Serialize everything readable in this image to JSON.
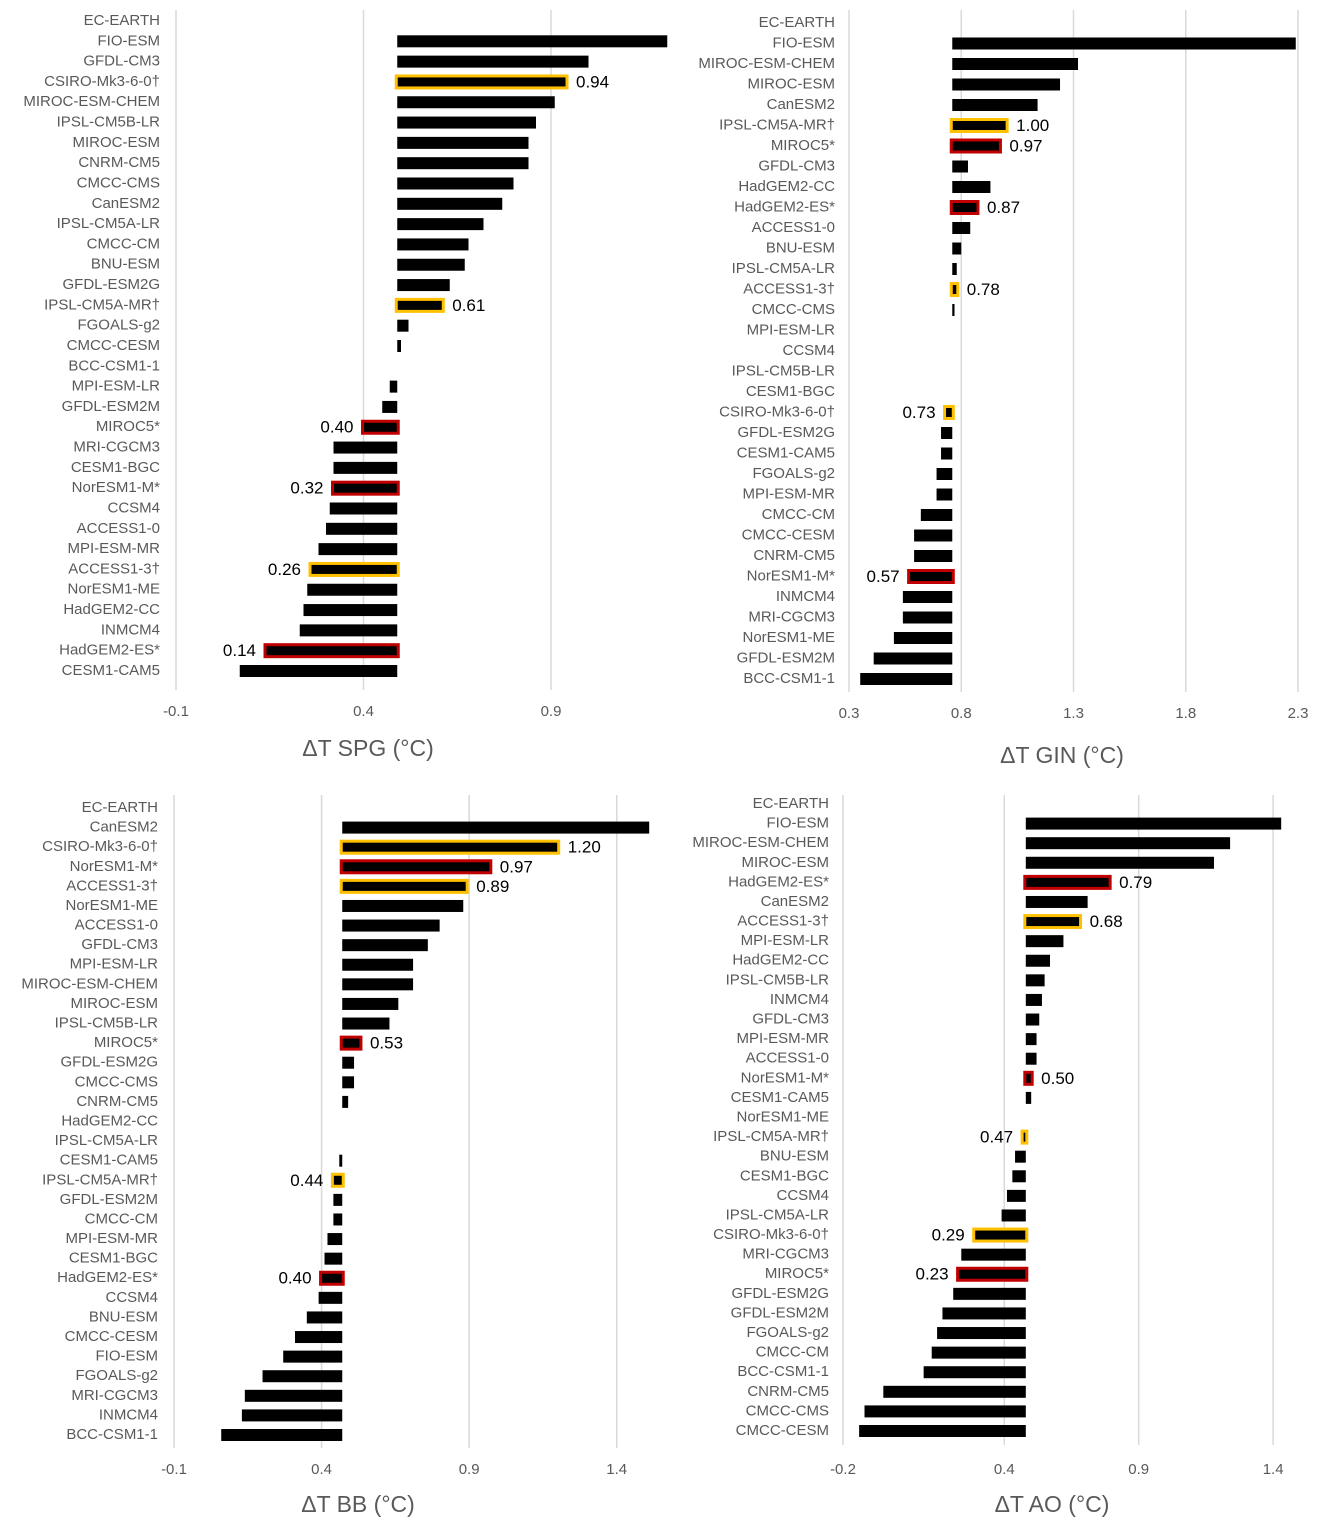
{
  "chart_data": [
    {
      "type": "bar",
      "orientation": "horizontal",
      "x_label": "ΔT SPG  (°C)",
      "color": "#000000",
      "grid": true,
      "xlim": [
        -0.1,
        1.22
      ],
      "xticks": [
        -0.1,
        0.4,
        0.9
      ],
      "categories": [
        "EC-EARTH",
        "FIO-ESM",
        "GFDL-CM3",
        "CSIRO-Mk3-6-0†",
        "MIROC-ESM-CHEM",
        "IPSL-CM5B-LR",
        "MIROC-ESM",
        "CNRM-CM5",
        "CMCC-CMS",
        "CanESM2",
        "IPSL-CM5A-LR",
        "CMCC-CM",
        "BNU-ESM",
        "GFDL-ESM2G",
        "IPSL-CM5A-MR†",
        "FGOALS-g2",
        "CMCC-CESM",
        "BCC-CSM1-1",
        "MPI-ESM-LR",
        "GFDL-ESM2M",
        "MIROC5*",
        "MRI-CGCM3",
        "CESM1-BGC",
        "NorESM1-M*",
        "CCSM4",
        "ACCESS1-0",
        "MPI-ESM-MR",
        "ACCESS1-3†",
        "NorESM1-ME",
        "HadGEM2-CC",
        "INMCM4",
        "HadGEM2-ES*",
        "CESM1-CAM5"
      ],
      "values": [
        0.49,
        1.21,
        1.0,
        0.94,
        0.91,
        0.86,
        0.84,
        0.84,
        0.8,
        0.77,
        0.72,
        0.68,
        0.67,
        0.63,
        0.61,
        0.52,
        0.5,
        0.49,
        0.47,
        0.45,
        0.4,
        0.32,
        0.32,
        0.32,
        0.31,
        0.3,
        0.28,
        0.26,
        0.25,
        0.24,
        0.23,
        0.14,
        0.07
      ],
      "value_labels": [
        null,
        null,
        null,
        "0.94",
        null,
        null,
        null,
        null,
        null,
        null,
        null,
        null,
        null,
        null,
        "0.61",
        null,
        null,
        null,
        null,
        null,
        "0.40",
        null,
        null,
        "0.32",
        null,
        null,
        null,
        "0.26",
        null,
        null,
        null,
        "0.14",
        null
      ],
      "outline_colors": [
        null,
        null,
        null,
        "#FFC000",
        null,
        null,
        null,
        null,
        null,
        null,
        null,
        null,
        null,
        null,
        "#FFC000",
        null,
        null,
        null,
        null,
        null,
        "#C00000",
        null,
        null,
        "#C00000",
        null,
        null,
        null,
        "#FFC000",
        null,
        null,
        null,
        "#C00000",
        null
      ]
    },
    {
      "type": "bar",
      "orientation": "horizontal",
      "x_label": "ΔT GIN (°C)",
      "color": "#000000",
      "grid": true,
      "xlim": [
        0.3,
        2.3
      ],
      "xticks": [
        0.3,
        0.8,
        1.3,
        1.8,
        2.3
      ],
      "categories": [
        "EC-EARTH",
        "FIO-ESM",
        "MIROC-ESM-CHEM",
        "MIROC-ESM",
        "CanESM2",
        "IPSL-CM5A-MR†",
        "MIROC5*",
        "GFDL-CM3",
        "HadGEM2-CC",
        "HadGEM2-ES*",
        "ACCESS1-0",
        "BNU-ESM",
        "IPSL-CM5A-LR",
        "ACCESS1-3†",
        "CMCC-CMS",
        "MPI-ESM-LR",
        "CCSM4",
        "IPSL-CM5B-LR",
        "CESM1-BGC",
        "CSIRO-Mk3-6-0†",
        "GFDL-ESM2G",
        "CESM1-CAM5",
        "FGOALS-g2",
        "MPI-ESM-MR",
        "CMCC-CM",
        "CMCC-CESM",
        "CNRM-CM5",
        "NorESM1-M*",
        "INMCM4",
        "MRI-CGCM3",
        "NorESM1-ME",
        "GFDL-ESM2M",
        "BCC-CSM1-1"
      ],
      "values": [
        0.76,
        2.29,
        1.32,
        1.24,
        1.14,
        1.0,
        0.97,
        0.83,
        0.93,
        0.87,
        0.84,
        0.8,
        0.78,
        0.78,
        0.77,
        0.76,
        0.76,
        0.76,
        0.76,
        0.73,
        0.71,
        0.71,
        0.69,
        0.69,
        0.62,
        0.59,
        0.59,
        0.57,
        0.54,
        0.54,
        0.5,
        0.41,
        0.35
      ],
      "value_labels": [
        null,
        null,
        null,
        null,
        null,
        "1.00",
        "0.97",
        null,
        null,
        "0.87",
        null,
        null,
        null,
        "0.78",
        null,
        null,
        null,
        null,
        null,
        "0.73",
        null,
        null,
        null,
        null,
        null,
        null,
        null,
        "0.57",
        null,
        null,
        null,
        null,
        null
      ],
      "outline_colors": [
        null,
        null,
        null,
        null,
        null,
        "#FFC000",
        "#C00000",
        null,
        null,
        "#C00000",
        null,
        null,
        null,
        "#FFC000",
        null,
        null,
        null,
        null,
        null,
        "#FFC000",
        null,
        null,
        null,
        null,
        null,
        null,
        null,
        "#C00000",
        null,
        null,
        null,
        null,
        null
      ]
    },
    {
      "type": "bar",
      "orientation": "horizontal",
      "x_label": "ΔT BB (°C)",
      "color": "#000000",
      "grid": true,
      "xlim": [
        -0.1,
        1.55
      ],
      "xticks": [
        -0.1,
        0.4,
        0.9,
        1.4
      ],
      "categories": [
        "EC-EARTH",
        "CanESM2",
        "CSIRO-Mk3-6-0†",
        "NorESM1-M*",
        "ACCESS1-3†",
        "NorESM1-ME",
        "ACCESS1-0",
        "GFDL-CM3",
        "MPI-ESM-LR",
        "MIROC-ESM-CHEM",
        "MIROC-ESM",
        "IPSL-CM5B-LR",
        "MIROC5*",
        "GFDL-ESM2G",
        "CMCC-CMS",
        "CNRM-CM5",
        "HadGEM2-CC",
        "IPSL-CM5A-LR",
        "CESM1-CAM5",
        "IPSL-CM5A-MR†",
        "GFDL-ESM2M",
        "CMCC-CM",
        "MPI-ESM-MR",
        "CESM1-BGC",
        "HadGEM2-ES*",
        "CCSM4",
        "BNU-ESM",
        "CMCC-CESM",
        "FIO-ESM",
        "FGOALS-g2",
        "MRI-CGCM3",
        "INMCM4",
        "BCC-CSM1-1"
      ],
      "values": [
        0.47,
        1.51,
        1.2,
        0.97,
        0.89,
        0.88,
        0.8,
        0.76,
        0.71,
        0.71,
        0.66,
        0.63,
        0.53,
        0.51,
        0.51,
        0.49,
        0.47,
        0.47,
        0.46,
        0.44,
        0.44,
        0.44,
        0.42,
        0.41,
        0.4,
        0.39,
        0.35,
        0.31,
        0.27,
        0.2,
        0.14,
        0.13,
        0.06
      ],
      "value_labels": [
        null,
        null,
        "1.20",
        "0.97",
        "0.89",
        null,
        null,
        null,
        null,
        null,
        null,
        null,
        "0.53",
        null,
        null,
        null,
        null,
        null,
        null,
        "0.44",
        null,
        null,
        null,
        null,
        "0.40",
        null,
        null,
        null,
        null,
        null,
        null,
        null,
        null
      ],
      "outline_colors": [
        null,
        null,
        "#FFC000",
        "#C00000",
        "#FFC000",
        null,
        null,
        null,
        null,
        null,
        null,
        null,
        "#C00000",
        null,
        null,
        null,
        null,
        null,
        null,
        "#FFC000",
        null,
        null,
        null,
        null,
        "#C00000",
        null,
        null,
        null,
        null,
        null,
        null,
        null,
        null
      ]
    },
    {
      "type": "bar",
      "orientation": "horizontal",
      "x_label": "ΔT AO (°C)",
      "color": "#000000",
      "grid": true,
      "xlim": [
        -0.2,
        1.5
      ],
      "xticks": [
        -0.2,
        0.4,
        0.9,
        1.4
      ],
      "categories": [
        "EC-EARTH",
        "FIO-ESM",
        "MIROC-ESM-CHEM",
        "MIROC-ESM",
        "HadGEM2-ES*",
        "CanESM2",
        "ACCESS1-3†",
        "MPI-ESM-LR",
        "HadGEM2-CC",
        "IPSL-CM5B-LR",
        "INMCM4",
        "GFDL-CM3",
        "MPI-ESM-MR",
        "ACCESS1-0",
        "NorESM1-M*",
        "CESM1-CAM5",
        "NorESM1-ME",
        "IPSL-CM5A-MR†",
        "BNU-ESM",
        "CESM1-BGC",
        "CCSM4",
        "IPSL-CM5A-LR",
        "CSIRO-Mk3-6-0†",
        "MRI-CGCM3",
        "MIROC5*",
        "GFDL-ESM2G",
        "GFDL-ESM2M",
        "FGOALS-g2",
        "CMCC-CM",
        "BCC-CSM1-1",
        "CNRM-CM5",
        "CMCC-CMS",
        "CMCC-CESM"
      ],
      "values": [
        0.48,
        1.43,
        1.24,
        1.18,
        0.79,
        0.71,
        0.68,
        0.62,
        0.57,
        0.55,
        0.54,
        0.53,
        0.52,
        0.52,
        0.5,
        0.5,
        0.48,
        0.47,
        0.44,
        0.43,
        0.41,
        0.39,
        0.29,
        0.24,
        0.23,
        0.21,
        0.17,
        0.15,
        0.13,
        0.1,
        -0.05,
        -0.12,
        -0.14
      ],
      "value_labels": [
        null,
        null,
        null,
        null,
        "0.79",
        null,
        "0.68",
        null,
        null,
        null,
        null,
        null,
        null,
        null,
        "0.50",
        null,
        null,
        "0.47",
        null,
        null,
        null,
        null,
        "0.29",
        null,
        "0.23",
        null,
        null,
        null,
        null,
        null,
        null,
        null,
        null
      ],
      "outline_colors": [
        null,
        null,
        null,
        null,
        "#C00000",
        null,
        "#FFC000",
        null,
        null,
        null,
        null,
        null,
        null,
        null,
        "#C00000",
        null,
        null,
        "#FFC000",
        null,
        null,
        null,
        null,
        "#FFC000",
        null,
        "#C00000",
        null,
        null,
        null,
        null,
        null,
        null,
        null,
        null
      ]
    }
  ]
}
